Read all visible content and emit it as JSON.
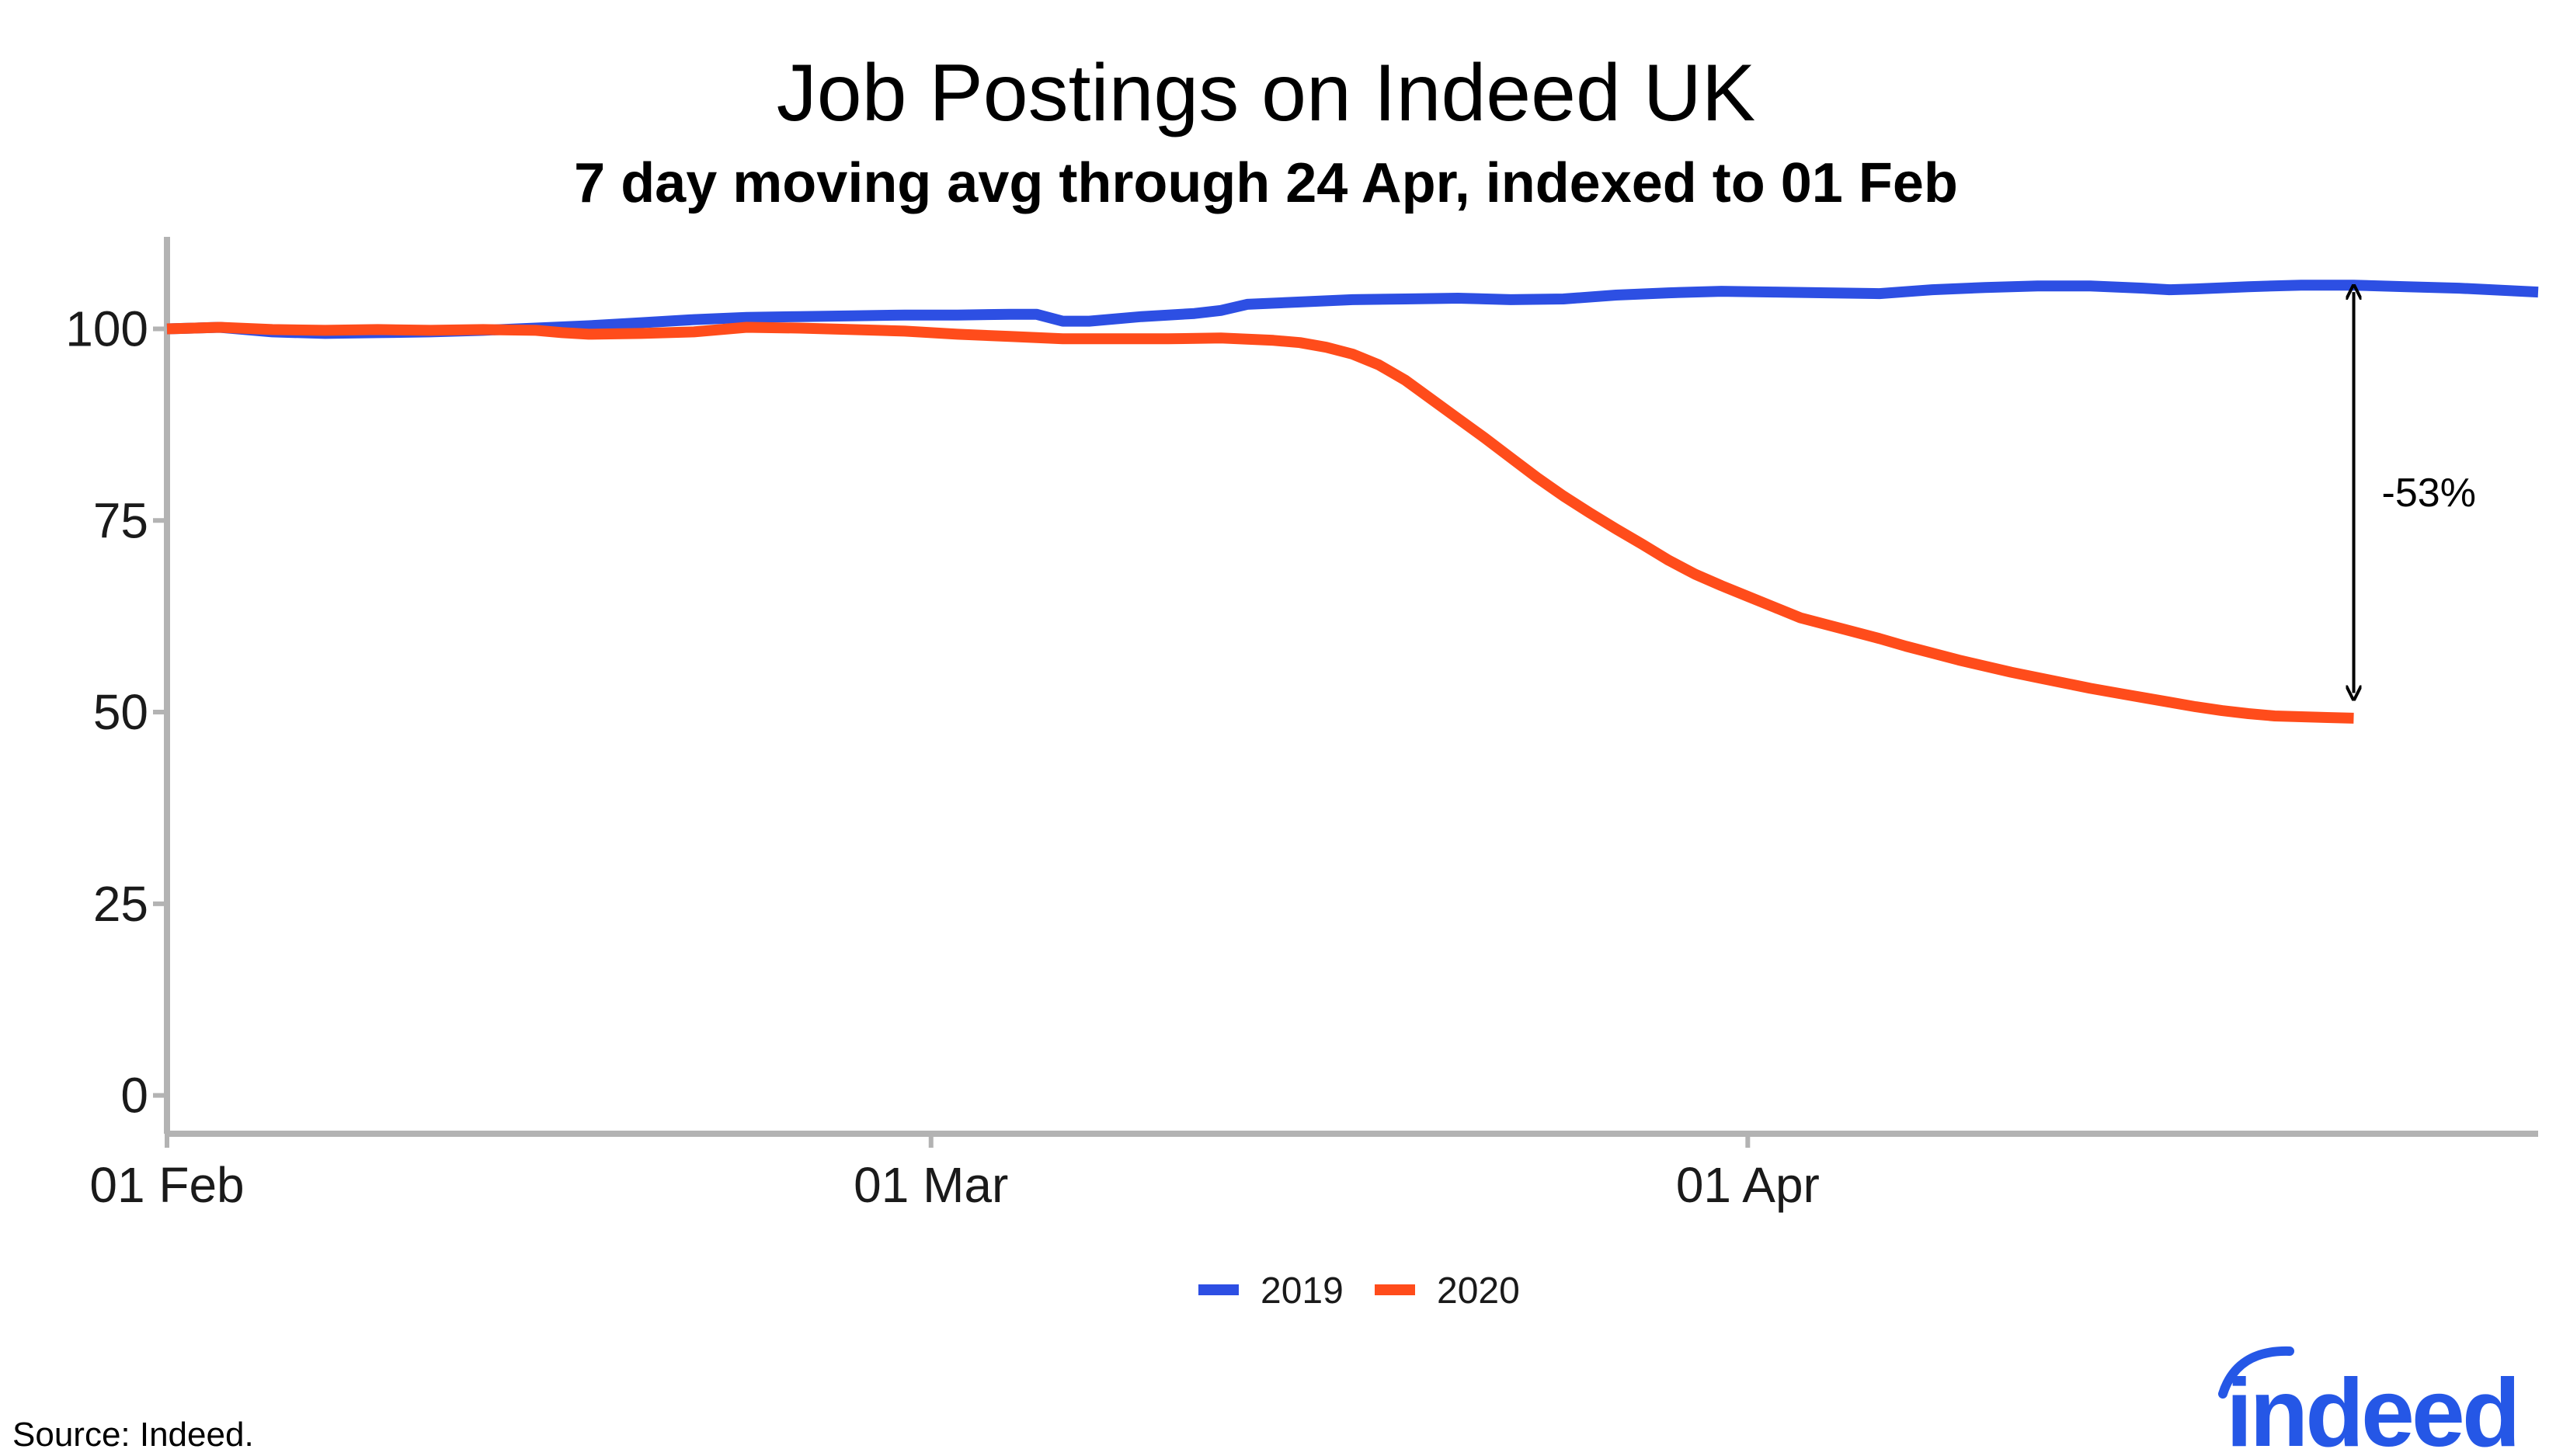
{
  "brand_color": "#2557e6",
  "chart_data": {
    "type": "line",
    "title": "Job Postings on Indeed UK",
    "subtitle": "7 day moving avg through 24 Apr, indexed to 01 Feb",
    "xlabel": "",
    "ylabel": "",
    "x_start": "2020-02-01",
    "x_end": "2020-05-01",
    "x_ticks": [
      {
        "date": "2020-02-01",
        "label": "01 Feb"
      },
      {
        "date": "2020-03-01",
        "label": "01 Mar"
      },
      {
        "date": "2020-04-01",
        "label": "01 Apr"
      }
    ],
    "y_ticks": [
      0,
      25,
      50,
      75,
      100
    ],
    "ylim": [
      -5,
      112
    ],
    "grid": false,
    "legend_position": "bottom-center",
    "series": [
      {
        "name": "2019",
        "color": "#2d4fe3",
        "points": [
          [
            "2020-02-01",
            100.0
          ],
          [
            "2020-02-03",
            100.2
          ],
          [
            "2020-02-05",
            99.6
          ],
          [
            "2020-02-07",
            99.4
          ],
          [
            "2020-02-09",
            99.5
          ],
          [
            "2020-02-11",
            99.6
          ],
          [
            "2020-02-13",
            99.8
          ],
          [
            "2020-02-15",
            100.1
          ],
          [
            "2020-02-17",
            100.4
          ],
          [
            "2020-02-19",
            100.8
          ],
          [
            "2020-02-21",
            101.2
          ],
          [
            "2020-02-23",
            101.5
          ],
          [
            "2020-02-25",
            101.6
          ],
          [
            "2020-02-27",
            101.7
          ],
          [
            "2020-02-29",
            101.8
          ],
          [
            "2020-03-02",
            101.8
          ],
          [
            "2020-03-04",
            101.9
          ],
          [
            "2020-03-05",
            101.9
          ],
          [
            "2020-03-06",
            101.0
          ],
          [
            "2020-03-07",
            101.0
          ],
          [
            "2020-03-09",
            101.6
          ],
          [
            "2020-03-11",
            102.0
          ],
          [
            "2020-03-12",
            102.4
          ],
          [
            "2020-03-13",
            103.2
          ],
          [
            "2020-03-15",
            103.5
          ],
          [
            "2020-03-17",
            103.8
          ],
          [
            "2020-03-19",
            103.9
          ],
          [
            "2020-03-21",
            104.0
          ],
          [
            "2020-03-23",
            103.8
          ],
          [
            "2020-03-25",
            103.9
          ],
          [
            "2020-03-27",
            104.4
          ],
          [
            "2020-03-29",
            104.7
          ],
          [
            "2020-03-31",
            104.9
          ],
          [
            "2020-04-02",
            104.8
          ],
          [
            "2020-04-04",
            104.7
          ],
          [
            "2020-04-06",
            104.6
          ],
          [
            "2020-04-08",
            105.1
          ],
          [
            "2020-04-10",
            105.4
          ],
          [
            "2020-04-12",
            105.6
          ],
          [
            "2020-04-14",
            105.6
          ],
          [
            "2020-04-16",
            105.3
          ],
          [
            "2020-04-17",
            105.1
          ],
          [
            "2020-04-18",
            105.2
          ],
          [
            "2020-04-20",
            105.5
          ],
          [
            "2020-04-22",
            105.7
          ],
          [
            "2020-04-24",
            105.7
          ],
          [
            "2020-04-26",
            105.5
          ],
          [
            "2020-04-28",
            105.3
          ],
          [
            "2020-05-01",
            104.8
          ]
        ]
      },
      {
        "name": "2020",
        "color": "#ff4c1b",
        "points": [
          [
            "2020-02-01",
            100.0
          ],
          [
            "2020-02-03",
            100.2
          ],
          [
            "2020-02-05",
            99.9
          ],
          [
            "2020-02-07",
            99.8
          ],
          [
            "2020-02-09",
            99.9
          ],
          [
            "2020-02-11",
            99.8
          ],
          [
            "2020-02-13",
            99.9
          ],
          [
            "2020-02-15",
            99.8
          ],
          [
            "2020-02-16",
            99.5
          ],
          [
            "2020-02-17",
            99.3
          ],
          [
            "2020-02-19",
            99.4
          ],
          [
            "2020-02-21",
            99.6
          ],
          [
            "2020-02-23",
            100.2
          ],
          [
            "2020-02-25",
            100.1
          ],
          [
            "2020-02-27",
            99.9
          ],
          [
            "2020-02-29",
            99.7
          ],
          [
            "2020-03-02",
            99.3
          ],
          [
            "2020-03-04",
            99.0
          ],
          [
            "2020-03-06",
            98.7
          ],
          [
            "2020-03-08",
            98.7
          ],
          [
            "2020-03-10",
            98.7
          ],
          [
            "2020-03-12",
            98.8
          ],
          [
            "2020-03-14",
            98.5
          ],
          [
            "2020-03-15",
            98.2
          ],
          [
            "2020-03-16",
            97.6
          ],
          [
            "2020-03-17",
            96.7
          ],
          [
            "2020-03-18",
            95.3
          ],
          [
            "2020-03-19",
            93.3
          ],
          [
            "2020-03-20",
            90.8
          ],
          [
            "2020-03-21",
            88.3
          ],
          [
            "2020-03-22",
            85.8
          ],
          [
            "2020-03-23",
            83.2
          ],
          [
            "2020-03-24",
            80.6
          ],
          [
            "2020-03-25",
            78.2
          ],
          [
            "2020-03-26",
            76.0
          ],
          [
            "2020-03-27",
            73.9
          ],
          [
            "2020-03-28",
            71.9
          ],
          [
            "2020-03-29",
            69.8
          ],
          [
            "2020-03-30",
            68.0
          ],
          [
            "2020-03-31",
            66.5
          ],
          [
            "2020-04-01",
            65.1
          ],
          [
            "2020-04-02",
            63.7
          ],
          [
            "2020-04-03",
            62.3
          ],
          [
            "2020-04-04",
            61.4
          ],
          [
            "2020-04-05",
            60.5
          ],
          [
            "2020-04-06",
            59.6
          ],
          [
            "2020-04-07",
            58.6
          ],
          [
            "2020-04-08",
            57.7
          ],
          [
            "2020-04-09",
            56.8
          ],
          [
            "2020-04-10",
            56.0
          ],
          [
            "2020-04-11",
            55.2
          ],
          [
            "2020-04-12",
            54.5
          ],
          [
            "2020-04-13",
            53.8
          ],
          [
            "2020-04-14",
            53.1
          ],
          [
            "2020-04-15",
            52.5
          ],
          [
            "2020-04-16",
            51.9
          ],
          [
            "2020-04-17",
            51.3
          ],
          [
            "2020-04-18",
            50.7
          ],
          [
            "2020-04-19",
            50.2
          ],
          [
            "2020-04-20",
            49.8
          ],
          [
            "2020-04-21",
            49.5
          ],
          [
            "2020-04-22",
            49.4
          ],
          [
            "2020-04-23",
            49.3
          ],
          [
            "2020-04-24",
            49.2
          ]
        ]
      }
    ],
    "annotation": {
      "label": "-53%",
      "date": "2020-04-24",
      "from_value": 104.8,
      "to_value": 52.5
    }
  },
  "source": "Source: Indeed.",
  "logo": {
    "text": "indeed",
    "color": "#2557e6"
  }
}
